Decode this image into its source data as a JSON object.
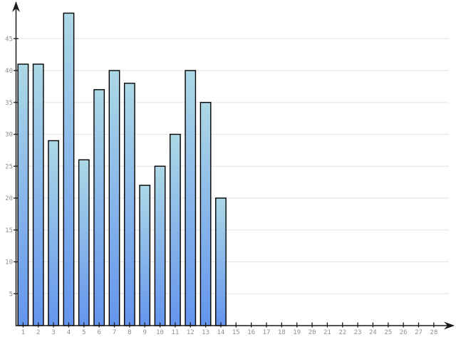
{
  "chart_data": {
    "type": "bar",
    "title": "",
    "xlabel": "",
    "ylabel": "",
    "categories": [
      "1",
      "2",
      "3",
      "4",
      "5",
      "6",
      "7",
      "8",
      "9",
      "10",
      "11",
      "12",
      "13",
      "14"
    ],
    "values": [
      41,
      41,
      29,
      49,
      26,
      37,
      40,
      38,
      22,
      25,
      30,
      40,
      35,
      20
    ],
    "x_ticks": [
      "1",
      "2",
      "3",
      "4",
      "5",
      "6",
      "7",
      "8",
      "9",
      "10",
      "11",
      "12",
      "13",
      "14",
      "15",
      "16",
      "17",
      "18",
      "19",
      "20",
      "21",
      "22",
      "23",
      "24",
      "25",
      "26",
      "27",
      "28"
    ],
    "y_ticks": [
      5,
      10,
      15,
      20,
      25,
      30,
      35,
      40,
      45
    ],
    "xlim": [
      0,
      29
    ],
    "ylim": [
      0,
      50.7
    ],
    "grid": "horizontal-only",
    "legend": "none",
    "colors": {
      "background": "#FFFFFF",
      "bar_gradient_top": "#ADD8E6",
      "bar_gradient_bottom": "#6495ED",
      "bar_border": "#000000",
      "gridline": "#E8E8E8",
      "axis": "#1A1A1A",
      "tick_label": "#8F8F8F"
    }
  }
}
